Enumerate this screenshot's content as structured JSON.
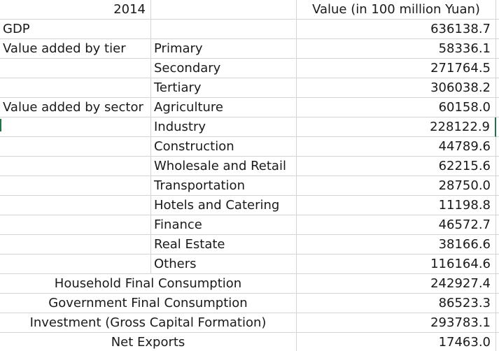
{
  "header": {
    "year": "2014",
    "value_col": "Value (in 100 million Yuan)"
  },
  "gdp": {
    "label": "GDP",
    "value": "636138.7"
  },
  "tier": {
    "group": "Value added by tier",
    "items": [
      {
        "label": "Primary",
        "value": "58336.1"
      },
      {
        "label": "Secondary",
        "value": "271764.5"
      },
      {
        "label": "Tertiary",
        "value": "306038.2"
      }
    ]
  },
  "sector": {
    "group": "Value added by sector",
    "items": [
      {
        "label": "Agriculture",
        "value": "60158.0"
      },
      {
        "label": "Industry",
        "value": "228122.9"
      },
      {
        "label": "Construction",
        "value": "44789.6"
      },
      {
        "label": "Wholesale and Retail",
        "value": "62215.6"
      },
      {
        "label": "Transportation",
        "value": "28750.0"
      },
      {
        "label": "Hotels and Catering",
        "value": "11198.8"
      },
      {
        "label": "Finance",
        "value": "46572.7"
      },
      {
        "label": "Real Estate",
        "value": "38166.6"
      },
      {
        "label": "Others",
        "value": "116164.6"
      }
    ]
  },
  "expenditure": [
    {
      "label": "Household Final Consumption",
      "value": "242927.4"
    },
    {
      "label": "Government Final Consumption",
      "value": "86523.3"
    },
    {
      "label": "Investment (Gross Capital Formation)",
      "value": "293783.1"
    },
    {
      "label": "Net Exports",
      "value": "17463.0"
    }
  ]
}
